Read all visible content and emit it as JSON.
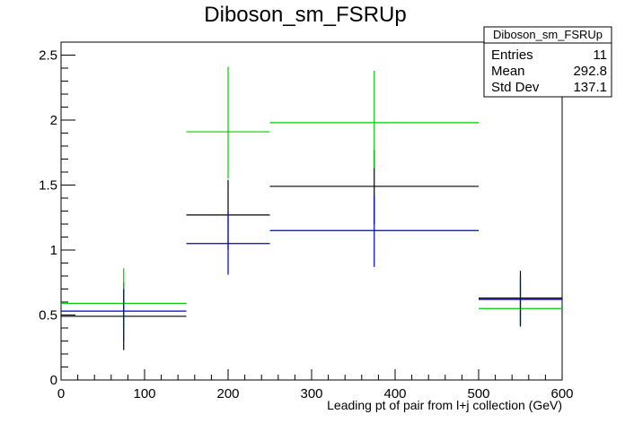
{
  "chart_data": {
    "type": "scatter",
    "title": "Diboson_sm_FSRUp",
    "xlabel": "Leading pt of pair from l+j collection (GeV)",
    "ylabel": "",
    "xlim": [
      0,
      600
    ],
    "ylim": [
      0,
      2.6
    ],
    "x_ticks": [
      "0",
      "100",
      "200",
      "300",
      "400",
      "500",
      "600"
    ],
    "y_ticks": [
      "0",
      "0.5",
      "1",
      "1.5",
      "2",
      "2.5"
    ],
    "grid": false,
    "stats_box": {
      "title": "Diboson_sm_FSRUp",
      "rows": [
        {
          "label": "Entries",
          "value": "11"
        },
        {
          "label": "Mean",
          "value": "292.8"
        },
        {
          "label": "Std Dev",
          "value": "137.1"
        }
      ]
    },
    "series": [
      {
        "color": "#000000",
        "points": [
          {
            "x_lo": 0,
            "x_hi": 150,
            "x": 75,
            "y": 0.49,
            "y_lo": 0.23,
            "y_hi": 0.75
          },
          {
            "x_lo": 150,
            "x_hi": 250,
            "x": 200,
            "y": 1.27,
            "y_lo": 1.0,
            "y_hi": 1.54
          },
          {
            "x_lo": 250,
            "x_hi": 500,
            "x": 375,
            "y": 1.49,
            "y_lo": 1.2,
            "y_hi": 1.77
          },
          {
            "x_lo": 500,
            "x_hi": 600,
            "x": 550,
            "y": 0.63,
            "y_lo": 0.42,
            "y_hi": 0.84
          }
        ]
      },
      {
        "color": "#00cc00",
        "points": [
          {
            "x_lo": 0,
            "x_hi": 150,
            "x": 75,
            "y": 0.59,
            "y_lo": 0.32,
            "y_hi": 0.86
          },
          {
            "x_lo": 150,
            "x_hi": 250,
            "x": 200,
            "y": 1.91,
            "y_lo": 1.55,
            "y_hi": 2.41
          },
          {
            "x_lo": 250,
            "x_hi": 500,
            "x": 375,
            "y": 1.98,
            "y_lo": 1.63,
            "y_hi": 2.38
          },
          {
            "x_lo": 500,
            "x_hi": 600,
            "x": 550,
            "y": 0.55,
            "y_lo": 0.42,
            "y_hi": 0.75
          }
        ]
      },
      {
        "color": "#0000cc",
        "points": [
          {
            "x_lo": 0,
            "x_hi": 150,
            "x": 75,
            "y": 0.53,
            "y_lo": 0.3,
            "y_hi": 0.7
          },
          {
            "x_lo": 150,
            "x_hi": 250,
            "x": 200,
            "y": 1.05,
            "y_lo": 0.81,
            "y_hi": 1.3
          },
          {
            "x_lo": 250,
            "x_hi": 500,
            "x": 375,
            "y": 1.15,
            "y_lo": 0.87,
            "y_hi": 1.42
          },
          {
            "x_lo": 500,
            "x_hi": 600,
            "x": 550,
            "y": 0.62,
            "y_lo": 0.41,
            "y_hi": 0.8
          }
        ]
      }
    ]
  }
}
